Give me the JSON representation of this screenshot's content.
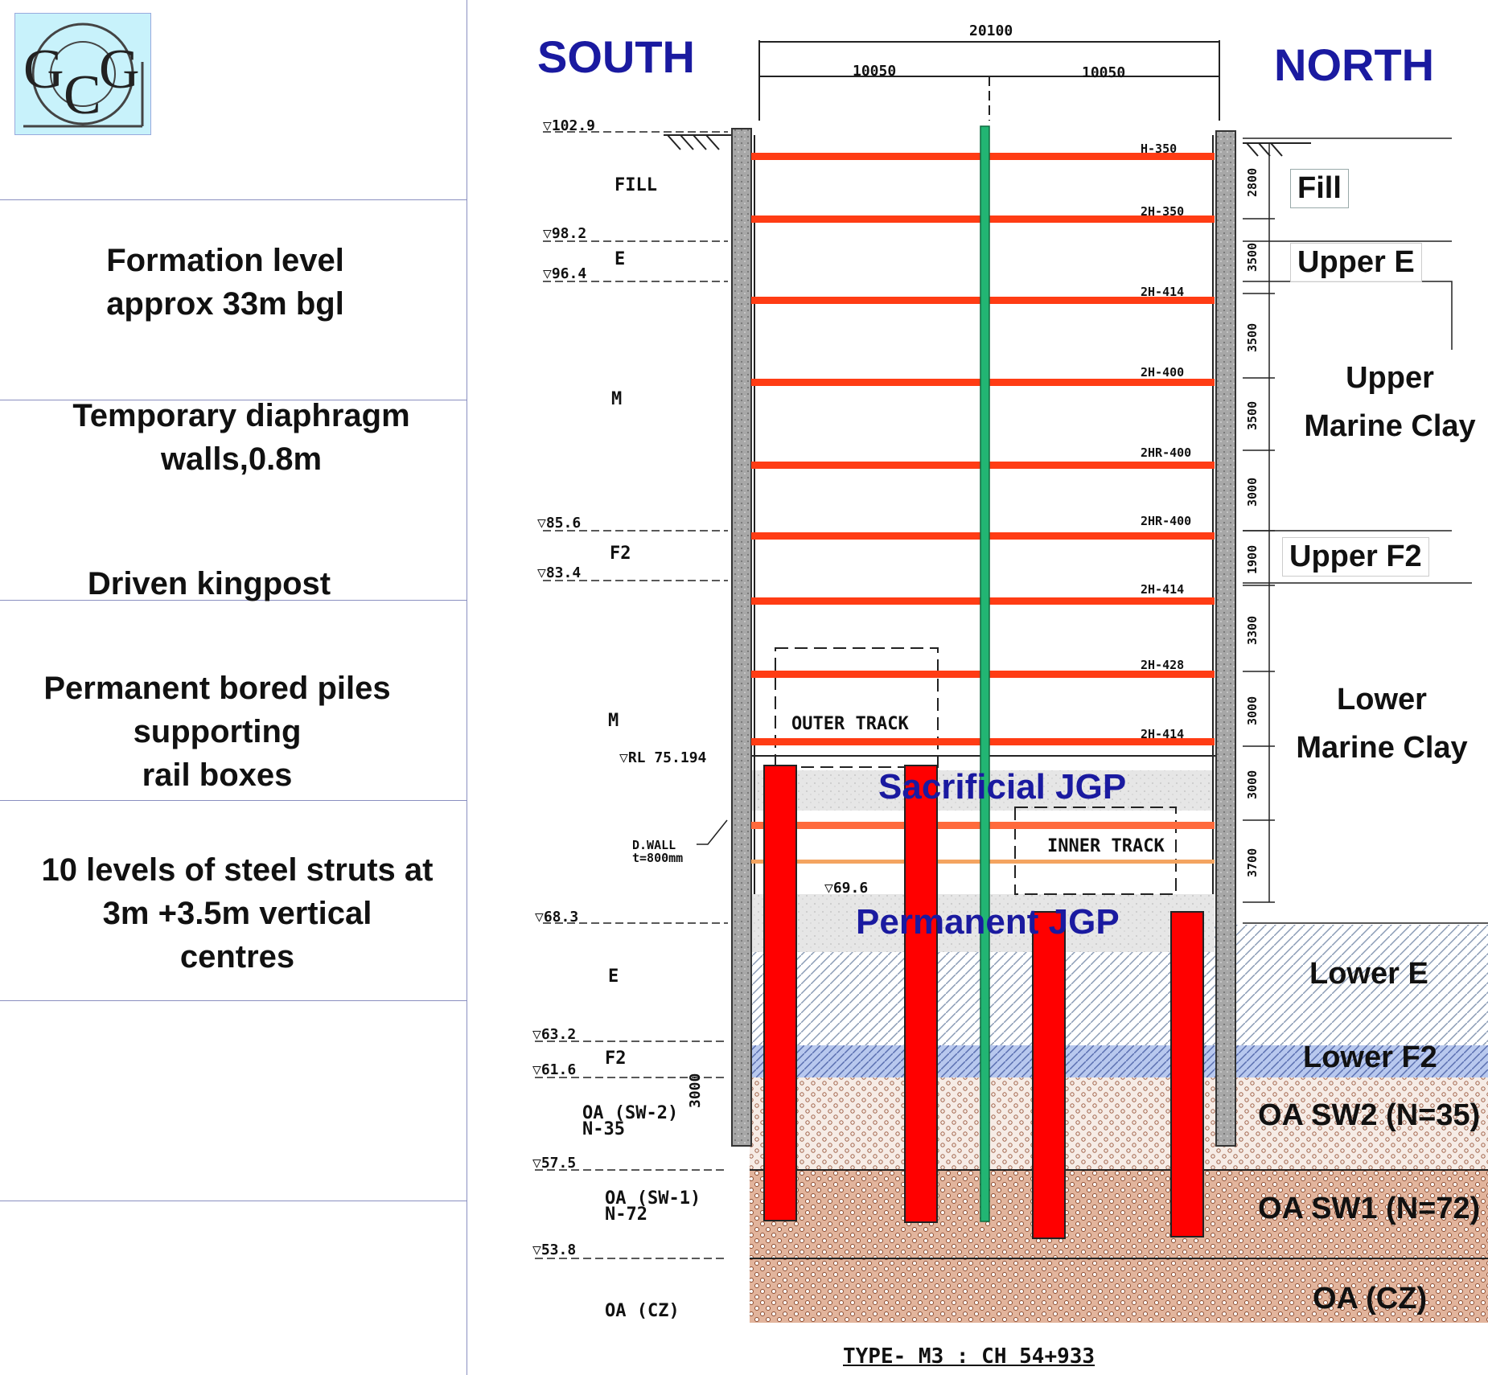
{
  "logo": {
    "letters": [
      "G",
      "C",
      "G"
    ]
  },
  "left_panel": {
    "formation": [
      "Formation level",
      "approx 33m bgl"
    ],
    "diaphragm": [
      "Temporary diaphragm",
      "walls,0.8m"
    ],
    "kingpost": "Driven kingpost",
    "piles": [
      "Permanent bored piles",
      "supporting",
      "rail boxes"
    ],
    "struts": [
      "10 levels of steel struts at",
      "3m +3.5m vertical",
      "centres"
    ]
  },
  "headings": {
    "south": "SOUTH",
    "north": "NORTH"
  },
  "dimensions": {
    "total": "20100",
    "half_left": "10050",
    "half_right": "10050"
  },
  "soil_labels_right": {
    "fill": "Fill",
    "upper_e": "Upper E",
    "upper_marine_clay": [
      "Upper",
      "Marine Clay"
    ],
    "upper_f2": "Upper F2",
    "lower_marine_clay": [
      "Lower",
      "Marine Clay"
    ],
    "lower_e": "Lower E",
    "lower_f2": "Lower F2",
    "oa_sw2": "OA SW2 (N=35)",
    "oa_sw1": "OA SW1 (N=72)",
    "oa_cz": "OA (CZ)"
  },
  "jgp": {
    "sacrificial": "Sacrificial JGP",
    "permanent": "Permanent JGP"
  },
  "levels_left": [
    "▽102.9",
    "▽98.2",
    "▽96.4",
    "▽85.6",
    "▽83.4",
    "▽RL 75.194",
    "▽69.6",
    "▽68.3",
    "▽63.2",
    "▽61.6",
    "▽57.5",
    "▽53.8"
  ],
  "strata_left": [
    "FILL",
    "E",
    "M",
    "F2",
    "M",
    "E",
    "F2",
    "OA (SW-2)",
    "N-35",
    "OA (SW-1)",
    "N-72",
    "OA (CZ)"
  ],
  "strut_labels": [
    "H-350",
    "2H-350",
    "2H-414",
    "2H-400",
    "2HR-400",
    "2HR-400",
    "2H-414",
    "2H-428",
    "2H-414"
  ],
  "right_dims": [
    "2800",
    "3500",
    "3500",
    "3500",
    "3000",
    "1900",
    "3300",
    "3000",
    "3000",
    "3700"
  ],
  "tracks": {
    "outer": "OUTER TRACK",
    "inner": "INNER TRACK"
  },
  "dwall_note": [
    "D.WALL",
    "t=800mm"
  ],
  "sw2_dim": "3000",
  "caption": "TYPE- M3 : CH 54+933",
  "colors": {
    "heading": "#1a1aa0",
    "strut": "#ff3c14",
    "pile": "#ff0000",
    "kingpost": "#22b573",
    "wall": "#9a9a9a"
  }
}
